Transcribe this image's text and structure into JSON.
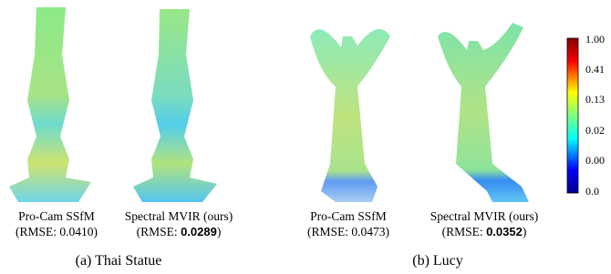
{
  "figure": {
    "panels": [
      {
        "method": "Pro-Cam SSfM",
        "rmse_prefix": "(RMSE: ",
        "rmse": "0.0410",
        "rmse_suffix": ")"
      },
      {
        "method": "Spectral MVIR (ours)",
        "rmse_prefix": "(RMSE: ",
        "rmse": "0.0289",
        "rmse_suffix": ")"
      },
      {
        "method": "Pro-Cam SSfM",
        "rmse_prefix": "(RMSE: ",
        "rmse": "0.0473",
        "rmse_suffix": ")"
      },
      {
        "method": "Spectral MVIR (ours)",
        "rmse_prefix": "(RMSE: ",
        "rmse": "0.0352",
        "rmse_suffix": ")"
      }
    ],
    "subcaptions": [
      "(a) Thai Statue",
      "(b) Lucy"
    ],
    "colorbar_labels": [
      "1.00",
      "0.41",
      "0.13",
      "0.02",
      "0.00",
      "0.0"
    ]
  }
}
